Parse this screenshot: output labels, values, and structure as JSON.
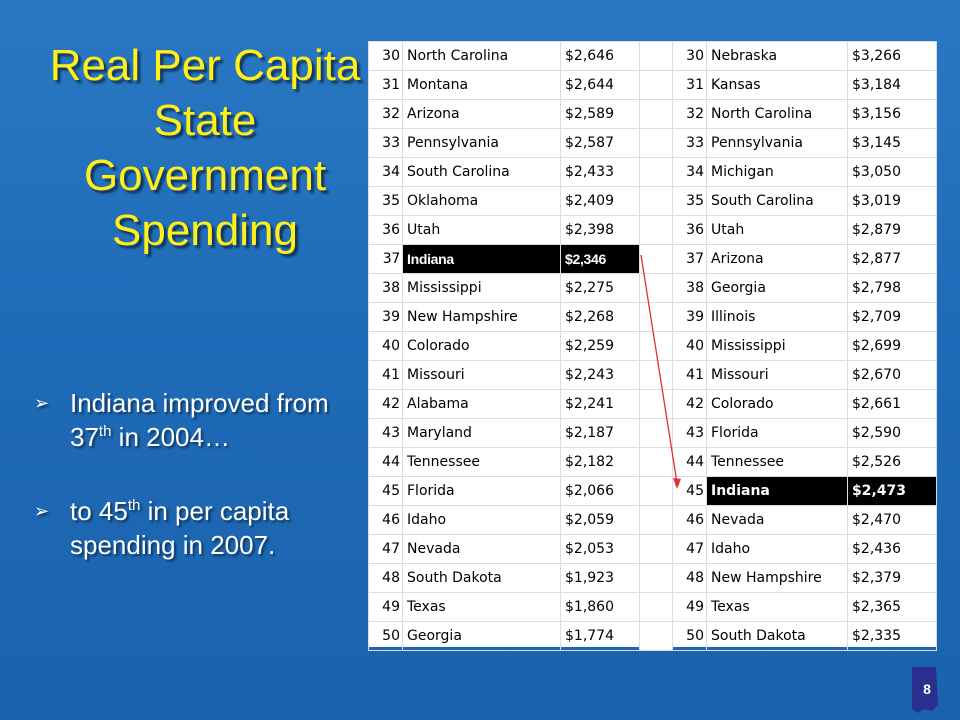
{
  "slide": {
    "title": "Real Per Capita State Government Spending",
    "bullets": [
      {
        "pre": "Indiana improved from 37",
        "sup": "th",
        "post": " in 2004…"
      },
      {
        "pre": "to 45",
        "sup": "th",
        "post": " in per capita spending in 2007."
      }
    ],
    "page_number": "8"
  },
  "table": {
    "highlight_left_rank": "37",
    "highlight_right_rank": "45",
    "rows": [
      {
        "l_rank": "30",
        "l_state": "North Carolina",
        "l_amt": "$2,646",
        "r_rank": "30",
        "r_state": "Nebraska",
        "r_amt": "$3,266"
      },
      {
        "l_rank": "31",
        "l_state": "Montana",
        "l_amt": "$2,644",
        "r_rank": "31",
        "r_state": "Kansas",
        "r_amt": "$3,184"
      },
      {
        "l_rank": "32",
        "l_state": "Arizona",
        "l_amt": "$2,589",
        "r_rank": "32",
        "r_state": "North Carolina",
        "r_amt": "$3,156"
      },
      {
        "l_rank": "33",
        "l_state": "Pennsylvania",
        "l_amt": "$2,587",
        "r_rank": "33",
        "r_state": "Pennsylvania",
        "r_amt": "$3,145"
      },
      {
        "l_rank": "34",
        "l_state": "South Carolina",
        "l_amt": "$2,433",
        "r_rank": "34",
        "r_state": "Michigan",
        "r_amt": "$3,050"
      },
      {
        "l_rank": "35",
        "l_state": "Oklahoma",
        "l_amt": "$2,409",
        "r_rank": "35",
        "r_state": "South Carolina",
        "r_amt": "$3,019"
      },
      {
        "l_rank": "36",
        "l_state": "Utah",
        "l_amt": "$2,398",
        "r_rank": "36",
        "r_state": "Utah",
        "r_amt": "$2,879"
      },
      {
        "l_rank": "37",
        "l_state": "Indiana",
        "l_amt": "$2,346",
        "r_rank": "37",
        "r_state": "Arizona",
        "r_amt": "$2,877"
      },
      {
        "l_rank": "38",
        "l_state": "Mississippi",
        "l_amt": "$2,275",
        "r_rank": "38",
        "r_state": "Georgia",
        "r_amt": "$2,798"
      },
      {
        "l_rank": "39",
        "l_state": "New Hampshire",
        "l_amt": "$2,268",
        "r_rank": "39",
        "r_state": "Illinois",
        "r_amt": "$2,709"
      },
      {
        "l_rank": "40",
        "l_state": "Colorado",
        "l_amt": "$2,259",
        "r_rank": "40",
        "r_state": "Mississippi",
        "r_amt": "$2,699"
      },
      {
        "l_rank": "41",
        "l_state": "Missouri",
        "l_amt": "$2,243",
        "r_rank": "41",
        "r_state": "Missouri",
        "r_amt": "$2,670"
      },
      {
        "l_rank": "42",
        "l_state": "Alabama",
        "l_amt": "$2,241",
        "r_rank": "42",
        "r_state": "Colorado",
        "r_amt": "$2,661"
      },
      {
        "l_rank": "43",
        "l_state": "Maryland",
        "l_amt": "$2,187",
        "r_rank": "43",
        "r_state": "Florida",
        "r_amt": "$2,590"
      },
      {
        "l_rank": "44",
        "l_state": "Tennessee",
        "l_amt": "$2,182",
        "r_rank": "44",
        "r_state": "Tennessee",
        "r_amt": "$2,526"
      },
      {
        "l_rank": "45",
        "l_state": "Florida",
        "l_amt": "$2,066",
        "r_rank": "45",
        "r_state": "Indiana",
        "r_amt": "$2,473"
      },
      {
        "l_rank": "46",
        "l_state": "Idaho",
        "l_amt": "$2,059",
        "r_rank": "46",
        "r_state": "Nevada",
        "r_amt": "$2,470"
      },
      {
        "l_rank": "47",
        "l_state": "Nevada",
        "l_amt": "$2,053",
        "r_rank": "47",
        "r_state": "Idaho",
        "r_amt": "$2,436"
      },
      {
        "l_rank": "48",
        "l_state": "South Dakota",
        "l_amt": "$1,923",
        "r_rank": "48",
        "r_state": "New Hampshire",
        "r_amt": "$2,379"
      },
      {
        "l_rank": "49",
        "l_state": "Texas",
        "l_amt": "$1,860",
        "r_rank": "49",
        "r_state": "Texas",
        "r_amt": "$2,365"
      },
      {
        "l_rank": "50",
        "l_state": "Georgia",
        "l_amt": "$1,774",
        "r_rank": "50",
        "r_state": "South Dakota",
        "r_amt": "$2,335"
      }
    ]
  },
  "colors": {
    "background": "#1f6bb8",
    "title": "#ffef1a",
    "highlight": "#000000",
    "arrow": "#e03030"
  }
}
